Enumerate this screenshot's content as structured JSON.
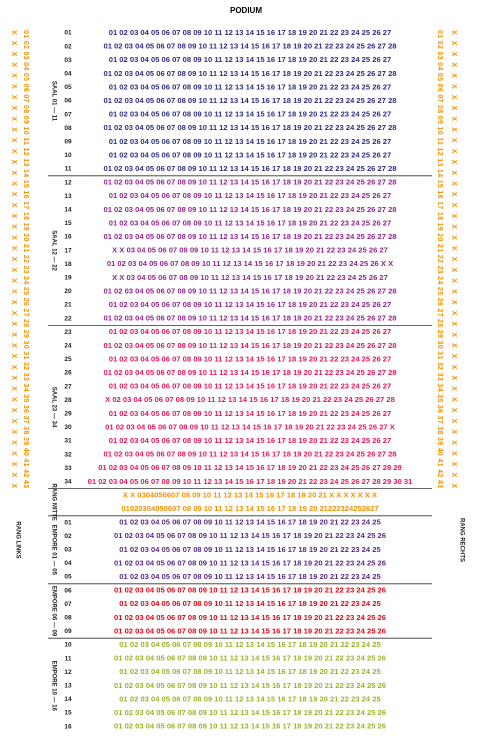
{
  "header": {
    "title": "PODIUM"
  },
  "sections": [
    {
      "label": "SAAL 01 — 11",
      "color": "#2e2d83",
      "rows": [
        {
          "row": "01",
          "seats": "01 02 03 04 05 06 07 08 09 10 11 12 13 14 15 16 17 18 19 20 21 22 23 24 25 26 27"
        },
        {
          "row": "02",
          "seats": "01 02 03 04 05 06 07 08 09 10 11 12 13 14 15 16 17 18 19 20 21 22 23 24 25 26 27 28"
        },
        {
          "row": "03",
          "seats": "01 02 03 04 05 06 07 08 09 10 11 12 13 14 15 16 17 18 19 20 21 22 23 24 25 26 27"
        },
        {
          "row": "04",
          "seats": "01 02 03 04 05 06 07 08 09 10 11 12 13 14 15 16 17 18 19 20 21 22 23 24 25 26 27 28"
        },
        {
          "row": "05",
          "seats": "01 02 03 04 05 06 07 08 09 10 11 12 13 14 15 16 17 18 19 20 21 22 23 24 25 26 27"
        },
        {
          "row": "06",
          "seats": "01 02 03 04 05 06 07 08 09 10 11 12 13 14 15 16 17 18 19 20 21 22 23 24 25 26 27 28"
        },
        {
          "row": "07",
          "seats": "01 02 03 04 05 06 07 08 09 10 11 12 13 14 15 16 17 18 19 20 21 22 23 24 25 26 27"
        },
        {
          "row": "08",
          "seats": "01 02 03 04 05 06 07 08 09 10 11 12 13 14 15 16 17 18 19 20 21 22 23 24 25 26 27 28"
        },
        {
          "row": "09",
          "seats": "01 02 03 04 05 06 07 08 09 10 11 12 13 14 15 16 17 18 19 20 21 22 23 24 25 26 27"
        },
        {
          "row": "10",
          "seats": "01 02 03 04 05 06 07 08 09 10 11 12 13 14 15 16 17 18 19 20 21 22 23 24 25 26 27"
        },
        {
          "row": "11",
          "seats": "01 02 03 04 05 06 07 08 09 10 11 12 13 14 15 16 17 18 19 20 21 22 23 24 25 26 27 28"
        }
      ]
    },
    {
      "label": "SAAL 12 — 22",
      "color": "#93278f",
      "rows": [
        {
          "row": "12",
          "seats": "01 02 03 04 05 06 07 08 09 10 11 12 13 14 15 16 17 18 19 20 21 22 23 24 25 26 27 28"
        },
        {
          "row": "13",
          "seats": "01 02 03 04 05 06 07 08 09 10 11 12 13 14 15 16 17 18 19 20 21 22 23 24 25 26 27"
        },
        {
          "row": "14",
          "seats": "01 02 03 04 05 06 07 08 09 10 11 12 13 14 15 16 17 18 19 20 21 22 23 24 25 26 27 28"
        },
        {
          "row": "15",
          "seats": "01 02 03 04 05 06 07 08 09 10 11 12 13 14 15 16 17 18 19 20 21 22 23 24 25 26 27"
        },
        {
          "row": "16",
          "seats": "01 02 03 04 05 06 07 08 09 10 11 12 13 14 15 16 17 18 19 20 21 22 23 24 25 26 27 28"
        },
        {
          "row": "17",
          "seats": "X X 03 04 05 06 07 08 09 10 11 12 13 14 15 16 17 18 19 20 21 22 23 24 25 26 27"
        },
        {
          "row": "18",
          "seats": "01 02 03 04 05 06 07 08 09 10 11 12 13 14 15 16 17 18 19 20 21 22 23 24 25 26 X X"
        },
        {
          "row": "19",
          "seats": "X X 03 04 05 06 07 08 09 10 11 12 13 14 15 16 17 18 19 20 21 22 23 24 25 26 27"
        },
        {
          "row": "20",
          "seats": "01 02 03 04 05 06 07 08 09 10 11 12 13 14 15 16 17 18 19 20 21 22 23 24 25 26 27 28"
        },
        {
          "row": "21",
          "seats": "01 02 03 04 05 06 07 08 09 10 11 12 13 14 15 16 17 18 19 20 21 22 23 24 25 26 27"
        },
        {
          "row": "22",
          "seats": "01 02 03 04 05 06 07 08 09 10 11 12 13 14 15 16 17 18 19 20 21 22 23 24 25 26 27 28"
        }
      ]
    },
    {
      "label": "SAAL 23 — 34",
      "color": "#e5175b",
      "rows": [
        {
          "row": "23",
          "seats": "01 02 03 04 05 06 07 08 09 10 11 12 13 14 15 16 17 18 19 20 21 22 23 24 25 26 27"
        },
        {
          "row": "24",
          "seats": "01 02 03 04 05 06 07 08 09 10 11 12 13 14 15 16 17 18 19 20 21 22 23 24 25 26 27 28"
        },
        {
          "row": "25",
          "seats": "01 02 03 04 05 06 07 08 09 10 11 12 13 14 15 16 17 18 19 20 21 22 23 24 25 26 27"
        },
        {
          "row": "26",
          "seats": "01 02 03 04 05 06 07 08 09 10 11 12 13 14 15 16 17 18 19 20 21 22 23 24 25 26 27 28"
        },
        {
          "row": "27",
          "seats": "01 02 03 04 05 06 07 08 09 10 11 12 13 14 15 16 17 18 19 20 21 22 23 24 25 26 27"
        },
        {
          "row": "28",
          "seats": "X 02 03 04 05 06 07 08 09 10 11 12 13 14 15 16 17 18 19 20 21 22 23 24 25 26 27 28"
        },
        {
          "row": "29",
          "seats": "01 02 03 04 05 06 07 08 09 10 11 12 13 14 15 16 17 18 19 20 21 22 23 24 25 26 27"
        },
        {
          "row": "30",
          "seats": "01 02 03 04 05 06 07 08 09 10 11 12 13 14 15 16 17 18 19 20 21 22 23 24 25 26 27 X"
        },
        {
          "row": "31",
          "seats": "01 02 03 04 05 06 07 08 09 10 11 12 13 14 15 16 17 18 19 20 21 22 23 24 25 26 27"
        },
        {
          "row": "32",
          "seats": "01 02 03 04 05 06 07 08 09 10 11 12 13 14 15 16 17 18 19 20 21 22 23 24 25 26 27 28"
        },
        {
          "row": "33",
          "seats": "01 02 03 04 05 06 07 08 09 10 11 12 13 14 15 16 17 18 19 20 21 22 23 24 25 26 27 28 29"
        },
        {
          "row": "34",
          "seats": "01 02 03 04 05 06 07 08 09 10 11 12 13 14 15 16 17 18 19 20 21 22 23 24 25 26 27 28 29 30 31"
        }
      ]
    },
    {
      "label": "RANG MITTE",
      "color": "#f39200",
      "rows": [
        {
          "seats": "X X 0304050607   08 09 10 11 12 13 14 15 16 17 18 19 20 21   X X X X X X X"
        },
        {
          "seats": "01020304050607   08 09 10 11 12 13 14 15 16 17 18 19 20   21222324252627"
        }
      ]
    },
    {
      "label": "EMPORE 01 — 05",
      "color": "#5b2a86",
      "rows": [
        {
          "row": "01",
          "seats": "01 02 03 04 05 06 07 08 09 10 11 12 13 14 15 16 17 18 19 20 21 22 23 24 25"
        },
        {
          "row": "02",
          "seats": "01 02 03 04 05 06 07 08 09 10 11 12 13 14 15 16 17 18 19 20 21 22 23 24 25 26"
        },
        {
          "row": "03",
          "seats": "01 02 03 04 05 06 07 08 09 10 11 12 13 14 15 16 17 18 19 20 21 22 23 24 25"
        },
        {
          "row": "04",
          "seats": "01 02 03 04 05 06 07 08 09 10 11 12 13 14 15 16 17 18 19 20 21 22 23 24 25 26"
        },
        {
          "row": "05",
          "seats": "01 02 03 04 05 06 07 08 09 10 11 12 13 14 15 16 17 18 19 20 21 22 23 24 25"
        }
      ]
    },
    {
      "label": "EMPORE 06 — 09",
      "color": "#e30613",
      "rows": [
        {
          "row": "06",
          "seats": "01 02 03 04 05 06 07 08 09 10 11 12 13 14 15 16 17 18 19 20 21 22 23 24 25 26"
        },
        {
          "row": "07",
          "seats": "01 02 03 04 05 06 07 08 09 10 11 12 13 14 15 16 17 18 19 20 21 22 23 24 25"
        },
        {
          "row": "08",
          "seats": "01 02 03 04 05 06 07 08 09 10 11 12 13 14 15 16 17 18 19 20 21 22 23 24 25 26"
        },
        {
          "row": "09",
          "seats": "01 02 03 04 05 06 07 08 09 10 11 12 13 14 15 16 17 18 19 20 21 22 23 24 25 26"
        }
      ]
    },
    {
      "label": "EMPORE 10 — 16",
      "color": "#9fb12a",
      "rows": [
        {
          "row": "10",
          "seats": "01 02 03 04 05 06 07 08 09 10 11 12 13 14 15 16 17 18 19 20 21 22 23 24 25"
        },
        {
          "row": "11",
          "seats": "01 02 03 04 05 06 07 08 09 10 11 12 13 14 15 16 17 18 19 20 21 22 23 24 25 26"
        },
        {
          "row": "12",
          "seats": "01 02 03 04 05 06 07 08 09 10 11 12 13 14 15 16 17 18 19 20 21 22 23 24 25"
        },
        {
          "row": "13",
          "seats": "01 02 03 04 05 06 07 08 09 10 11 12 13 14 15 16 17 18 19 20 21 22 23 24 25 26"
        },
        {
          "row": "14",
          "seats": "01 02 03 04 05 06 07 08 09 10 11 12 13 14 15 16 17 18 19 20 21 22 23 24 25"
        },
        {
          "row": "15",
          "seats": "01 02 03 04 05 06 07 08 09 10 11 12 13 14 15 16 17 18 19 20 21 22 23 24 25 26"
        },
        {
          "row": "16",
          "seats": "01 02 03 04 05 06 07 08 09 10 11 12 13 14 15 16 17 18 19 20 21 22 23 24 25 26"
        }
      ]
    }
  ],
  "rang_links": {
    "label": "RANG LINKS",
    "numbers": "01 02 03 04 05 06 07 08 09 10 11 12 13 14 15 16 17 18 19 20 21 22 23 24 25 26 27 28 29 30 31 32 33 34 35 36 37 38 39 40 41 42 43",
    "marks": "X X X X X X X X X X X X X X X X X X X X X X X X X X X X X X X X X X X X X X X X X X X"
  },
  "rang_rechts": {
    "label": "RANG RECHTS",
    "numbers": "01 02 03 04 05 06 07 08 09 10 11 12 13 14 15 16 17 18 19 20 21 22 23 24 25 26 27 28 29 30 31 32 33 34 35 36 37 38 39 40 41 42 43",
    "marks": "X X X X X X X X X X X X X X X X X X X X X X X X X X X X X X X X X X X X X X X X X X X"
  }
}
